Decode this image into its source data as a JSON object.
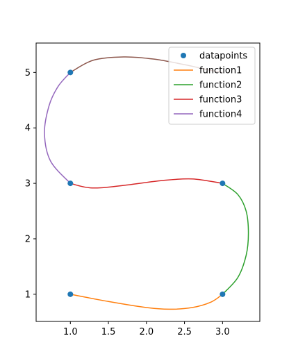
{
  "chart_data": {
    "type": "line",
    "title": "",
    "xlabel": "",
    "ylabel": "",
    "xlim": [
      0.55,
      3.49
    ],
    "ylim": [
      0.51,
      5.53
    ],
    "xticks": [
      "1.0",
      "1.5",
      "2.0",
      "2.5",
      "3.0"
    ],
    "yticks": [
      "1",
      "2",
      "3",
      "4",
      "5"
    ],
    "grid": false,
    "legend_position": "top-right",
    "scatter": {
      "name": "datapoints",
      "color": "#1f77b4",
      "points": [
        [
          1.0,
          1.0
        ],
        [
          3.0,
          1.0
        ],
        [
          3.0,
          3.0
        ],
        [
          1.0,
          3.0
        ],
        [
          1.0,
          5.0
        ]
      ]
    },
    "series": [
      {
        "name": "function1",
        "color": "#ff7f0e",
        "points": [
          [
            1.0,
            1.0
          ],
          [
            1.5,
            0.87
          ],
          [
            2.0,
            0.76
          ],
          [
            2.3,
            0.73
          ],
          [
            2.6,
            0.76
          ],
          [
            2.85,
            0.86
          ],
          [
            3.0,
            1.0
          ]
        ]
      },
      {
        "name": "function2",
        "color": "#2ca02c",
        "points": [
          [
            3.0,
            1.0
          ],
          [
            3.2,
            1.3
          ],
          [
            3.31,
            1.7
          ],
          [
            3.34,
            2.1
          ],
          [
            3.31,
            2.5
          ],
          [
            3.2,
            2.8
          ],
          [
            3.0,
            3.0
          ]
        ]
      },
      {
        "name": "function3",
        "color": "#d62728",
        "points": [
          [
            3.0,
            3.0
          ],
          [
            2.6,
            3.08
          ],
          [
            2.2,
            3.05
          ],
          [
            1.8,
            2.98
          ],
          [
            1.4,
            2.92
          ],
          [
            1.2,
            2.93
          ],
          [
            1.0,
            3.0
          ]
        ]
      },
      {
        "name": "function4",
        "color": "#9467bd",
        "points": [
          [
            1.0,
            3.0
          ],
          [
            0.74,
            3.4
          ],
          [
            0.66,
            3.9
          ],
          [
            0.72,
            4.4
          ],
          [
            0.84,
            4.75
          ],
          [
            1.0,
            5.0
          ]
        ]
      },
      {
        "name": "",
        "color": "#8c564b",
        "points": [
          [
            1.0,
            5.0
          ],
          [
            1.3,
            5.22
          ],
          [
            1.7,
            5.28
          ],
          [
            2.1,
            5.24
          ],
          [
            2.5,
            5.14
          ],
          [
            2.8,
            5.05
          ],
          [
            3.0,
            5.0
          ]
        ]
      }
    ]
  }
}
